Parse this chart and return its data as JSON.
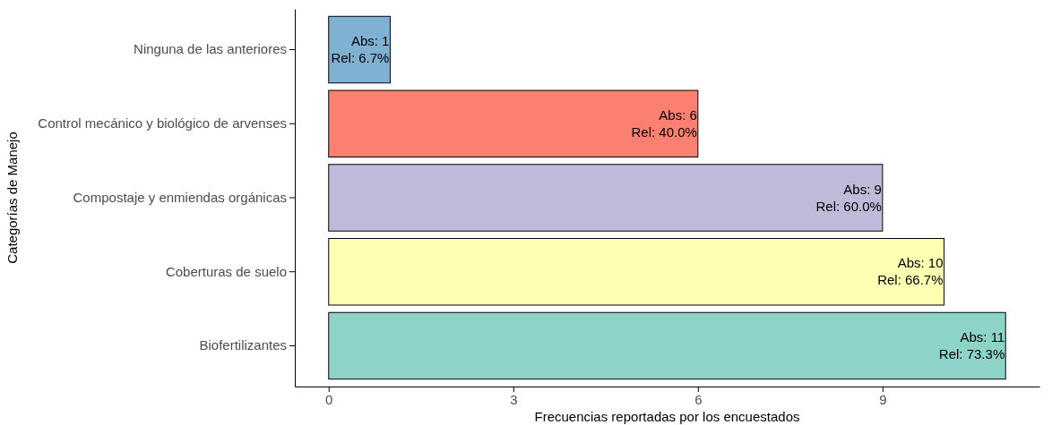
{
  "chart_data": {
    "type": "bar",
    "orientation": "horizontal",
    "xlabel": "Frecuencias reportadas por los encuestados",
    "ylabel": "Categorías de Manejo",
    "categories": [
      "Ninguna de las anteriores",
      "Control mecánico y biológico de arvenses",
      "Compostaje y enmiendas orgánicas",
      "Coberturas de suelo",
      "Biofertilizantes"
    ],
    "values": [
      1,
      6,
      9,
      10,
      11
    ],
    "colors": [
      "#80b1d3",
      "#fb8072",
      "#bebada",
      "#ffffb3",
      "#8dd3c7"
    ],
    "value_labels": [
      "Abs: 1\nRel: 6.7%",
      "Abs: 6\nRel: 40.0%",
      "Abs: 9\nRel: 60.0%",
      "Abs: 10\nRel: 66.7%",
      "Abs: 11\nRel: 73.3%"
    ],
    "xlim": [
      -0.55,
      11.55
    ],
    "xticks": [
      0,
      3,
      6,
      9
    ],
    "grid": false
  }
}
